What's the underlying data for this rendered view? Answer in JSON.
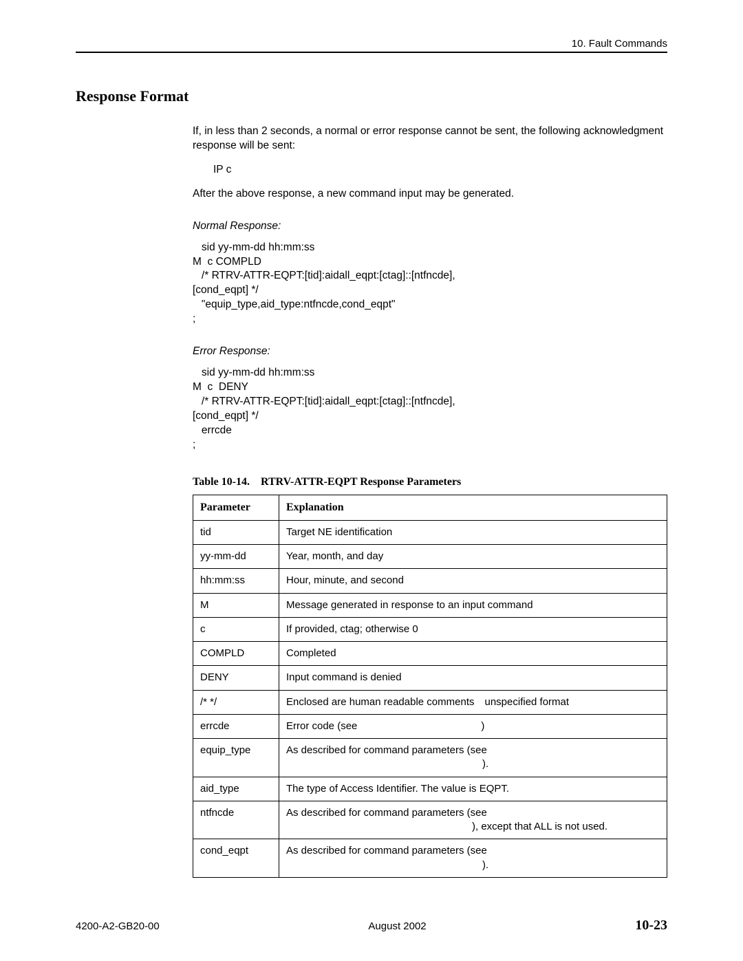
{
  "header": {
    "chapter": "10. Fault Commands"
  },
  "section_title": "Response Format",
  "intro_para": "If, in less than 2 seconds, a normal or error response cannot be sent, the following acknowledgment response will be sent:",
  "ip_c": "IP c",
  "after_para": "After the above response, a new command input may be generated.",
  "normal_label": "Normal Response:",
  "normal_code": "   sid yy-mm-dd hh:mm:ss\nM  c COMPLD\n   /* RTRV-ATTR-EQPT:[tid]:aidall_eqpt:[ctag]::[ntfncde],\n[cond_eqpt] */\n   \"equip_type,aid_type:ntfncde,cond_eqpt\"\n;",
  "error_label": "Error Response:",
  "error_code": "   sid yy-mm-dd hh:mm:ss\nM  c  DENY\n   /* RTRV-ATTR-EQPT:[tid]:aidall_eqpt:[ctag]::[ntfncde],\n[cond_eqpt] */\n   errcde\n;",
  "table": {
    "caption": "Table 10-14. RTRV-ATTR-EQPT Response Parameters",
    "columns": [
      "Parameter",
      "Explanation"
    ],
    "rows": [
      [
        "tid",
        "Target NE identification"
      ],
      [
        "yy-mm-dd",
        "Year, month, and day"
      ],
      [
        "hh:mm:ss",
        "Hour, minute, and second"
      ],
      [
        "M",
        "Message generated in response to an input command"
      ],
      [
        "c",
        "If provided, ctag; otherwise 0"
      ],
      [
        "COMPLD",
        "Completed"
      ],
      [
        "DENY",
        "Input command is denied"
      ],
      [
        "/* */",
        "Enclosed are human readable comments unspecified format"
      ],
      [
        "errcde",
        "Error code (see            )"
      ],
      [
        "equip_type",
        "As described for command parameters (see\n                   )."
      ],
      [
        "aid_type",
        "The type of Access Identifier. The value is EQPT."
      ],
      [
        "ntfncde",
        "As described for command parameters (see\n                  ), except that ALL is not used."
      ],
      [
        "cond_eqpt",
        "As described for command parameters (see\n                   )."
      ]
    ]
  },
  "footer": {
    "doc_id": "4200-A2-GB20-00",
    "date": "August 2002",
    "page": "10-23"
  }
}
